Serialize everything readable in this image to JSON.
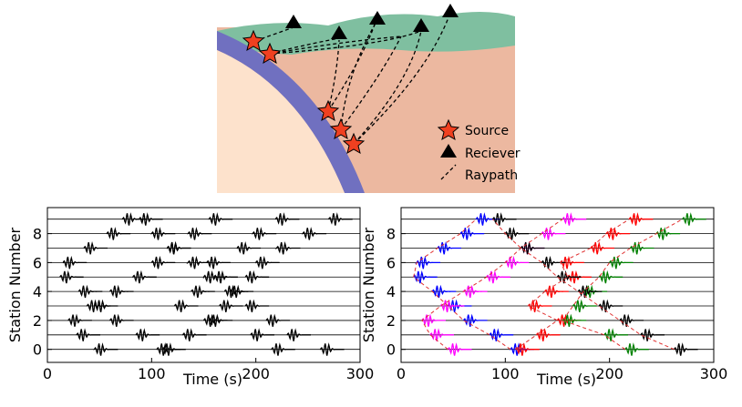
{
  "diagram": {
    "legend": [
      "Source",
      "Reciever",
      "Raypath"
    ]
  },
  "chart_data": [
    {
      "type": "seismogram",
      "xlabel": "Time (s)",
      "ylabel": "Station Number",
      "xlim": [
        0,
        300
      ],
      "ylim": [
        -0.9,
        9.8
      ],
      "xticks": [
        0,
        100,
        200,
        300
      ],
      "yticks": [
        0,
        2,
        4,
        6,
        8
      ],
      "series": [
        {
          "color": "#000000",
          "values": [
            105,
            85,
            60,
            45,
            30,
            12,
            15,
            35,
            57,
            72
          ]
        },
        {
          "color": "#000000",
          "values": [
            45,
            28,
            20,
            38,
            60,
            82,
            100,
            115,
            135,
            155
          ]
        },
        {
          "color": "#000000",
          "values": [
            110,
            130,
            150,
            122,
            138,
            160,
            153,
            182,
            197,
            219
          ]
        },
        {
          "color": "#000000",
          "values": [
            215,
            195,
            155,
            165,
            175,
            190,
            200,
            220,
            245,
            270
          ]
        },
        {
          "color": "#000000",
          "values": [
            262,
            230,
            210,
            190,
            170,
            150,
            135,
            115,
            100,
            88
          ]
        }
      ]
    },
    {
      "type": "seismogram",
      "xlabel": "Time (s)",
      "ylabel": "Station Number",
      "xlim": [
        0,
        300
      ],
      "ylim": [
        -0.9,
        9.8
      ],
      "xticks": [
        0,
        100,
        200,
        300
      ],
      "yticks": [
        0,
        2,
        4,
        6,
        8
      ],
      "series": [
        {
          "color": "#0000ff",
          "values": [
            105,
            85,
            60,
            45,
            30,
            12,
            15,
            35,
            57,
            72
          ]
        },
        {
          "color": "#ff00ff",
          "values": [
            45,
            28,
            20,
            38,
            60,
            82,
            100,
            115,
            135,
            155
          ]
        },
        {
          "color": "#ff0000",
          "values": [
            110,
            130,
            150,
            122,
            138,
            160,
            153,
            182,
            197,
            219
          ]
        },
        {
          "color": "#008000",
          "values": [
            215,
            195,
            155,
            165,
            175,
            190,
            200,
            220,
            245,
            270
          ]
        },
        {
          "color": "#000000",
          "values": [
            262,
            230,
            210,
            190,
            170,
            150,
            135,
            115,
            100,
            88
          ]
        }
      ]
    }
  ]
}
